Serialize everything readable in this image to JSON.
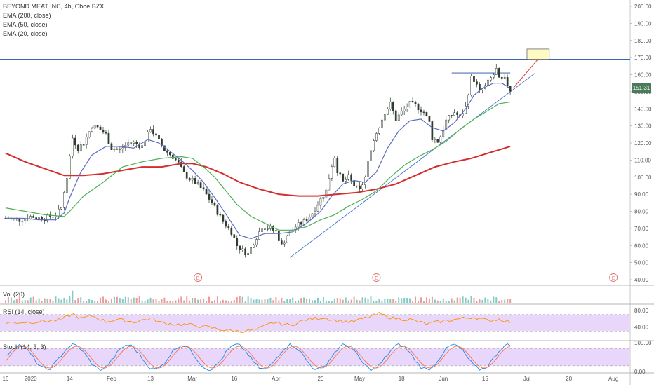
{
  "chart_data": {
    "type": "candlestick",
    "title": "BEYOND MEAT INC, 4h, Cboe BZX",
    "indicators_legend": [
      "EMA (200, close)",
      "EMA (50, close)",
      "EMA (20, close)"
    ],
    "price_axis": {
      "ticks": [
        "200.00",
        "190.00",
        "180.00",
        "170.00",
        "160.00",
        "150.00",
        "140.00",
        "130.00",
        "120.00",
        "110.00",
        "100.00",
        "90.00",
        "80.00",
        "70.00",
        "60.00",
        "50.00",
        "40.00"
      ],
      "ylim": [
        40,
        200
      ]
    },
    "last_price": "151.31",
    "x_axis": {
      "ticks": [
        "16",
        "2020",
        "14",
        "Feb",
        "13",
        "Mar",
        "16",
        "Apr",
        "20",
        "May",
        "18",
        "Jun",
        "15",
        "Jul",
        "20",
        "Aug"
      ],
      "tick_values": [
        0,
        9,
        23,
        38,
        52,
        67,
        82,
        97,
        113,
        127,
        142,
        157,
        172,
        187,
        202,
        218
      ]
    },
    "price_series": [
      {
        "name": "price",
        "points": [
          [
            0,
            76
          ],
          [
            5,
            75
          ],
          [
            9,
            77
          ],
          [
            14,
            76
          ],
          [
            18,
            78
          ],
          [
            20,
            82
          ],
          [
            21,
            92
          ],
          [
            22,
            100
          ],
          [
            23,
            112
          ],
          [
            24,
            123
          ],
          [
            26,
            117
          ],
          [
            28,
            120
          ],
          [
            31,
            130
          ],
          [
            33,
            129
          ],
          [
            36,
            125
          ],
          [
            38,
            117
          ],
          [
            41,
            116
          ],
          [
            44,
            120
          ],
          [
            46,
            120
          ],
          [
            49,
            118
          ],
          [
            51,
            125
          ],
          [
            52,
            129
          ],
          [
            53,
            126
          ],
          [
            55,
            121
          ],
          [
            57,
            116
          ],
          [
            60,
            112
          ],
          [
            62,
            108
          ],
          [
            64,
            102
          ],
          [
            66,
            99
          ],
          [
            68,
            97
          ],
          [
            71,
            92
          ],
          [
            74,
            85
          ],
          [
            78,
            74
          ],
          [
            81,
            68
          ],
          [
            83,
            60
          ],
          [
            85,
            57
          ],
          [
            87,
            55
          ],
          [
            89,
            62
          ],
          [
            92,
            71
          ],
          [
            95,
            70
          ],
          [
            97,
            68
          ],
          [
            99,
            60
          ],
          [
            101,
            66
          ],
          [
            104,
            71
          ],
          [
            107,
            74
          ],
          [
            110,
            79
          ],
          [
            113,
            87
          ],
          [
            115,
            92
          ],
          [
            116,
            100
          ],
          [
            117,
            107
          ],
          [
            118,
            112
          ],
          [
            119,
            104
          ],
          [
            121,
            97
          ],
          [
            123,
            100
          ],
          [
            125,
            95
          ],
          [
            127,
            92
          ],
          [
            129,
            100
          ],
          [
            131,
            117
          ],
          [
            133,
            126
          ],
          [
            136,
            138
          ],
          [
            138,
            143
          ],
          [
            140,
            134
          ],
          [
            142,
            138
          ],
          [
            145,
            143
          ],
          [
            147,
            142
          ],
          [
            150,
            138
          ],
          [
            152,
            132
          ],
          [
            153,
            123
          ],
          [
            155,
            121
          ],
          [
            156,
            124
          ],
          [
            158,
            133
          ],
          [
            161,
            138
          ],
          [
            163,
            135
          ],
          [
            165,
            141
          ],
          [
            167,
            158
          ],
          [
            168,
            157
          ],
          [
            170,
            150
          ],
          [
            172,
            153
          ],
          [
            174,
            158
          ],
          [
            175,
            160
          ],
          [
            176,
            163
          ],
          [
            177,
            157
          ],
          [
            179,
            157
          ],
          [
            181,
            151
          ]
        ]
      },
      {
        "name": "EMA (200, close)",
        "color": "#d32f2f",
        "points": [
          [
            0,
            114
          ],
          [
            7,
            109
          ],
          [
            14,
            105
          ],
          [
            21,
            101
          ],
          [
            28,
            101
          ],
          [
            35,
            102
          ],
          [
            42,
            104
          ],
          [
            49,
            106
          ],
          [
            56,
            106
          ],
          [
            63,
            108
          ],
          [
            67,
            108
          ],
          [
            72,
            106
          ],
          [
            78,
            102
          ],
          [
            84,
            97
          ],
          [
            91,
            93
          ],
          [
            98,
            90
          ],
          [
            105,
            89
          ],
          [
            112,
            89
          ],
          [
            119,
            90
          ],
          [
            126,
            91
          ],
          [
            133,
            93
          ],
          [
            140,
            96
          ],
          [
            147,
            101
          ],
          [
            154,
            106
          ],
          [
            161,
            109
          ],
          [
            167,
            111
          ],
          [
            173,
            114
          ],
          [
            177,
            116
          ],
          [
            181,
            118
          ]
        ]
      },
      {
        "name": "EMA (50, close)",
        "color": "#4caf50",
        "points": [
          [
            0,
            82
          ],
          [
            7,
            80
          ],
          [
            14,
            78
          ],
          [
            21,
            77
          ],
          [
            23,
            80
          ],
          [
            28,
            89
          ],
          [
            35,
            97
          ],
          [
            42,
            106
          ],
          [
            49,
            109
          ],
          [
            56,
            111
          ],
          [
            63,
            112
          ],
          [
            67,
            111
          ],
          [
            71,
            106
          ],
          [
            75,
            100
          ],
          [
            79,
            92
          ],
          [
            83,
            84
          ],
          [
            88,
            77
          ],
          [
            93,
            73
          ],
          [
            98,
            69
          ],
          [
            103,
            69
          ],
          [
            108,
            71
          ],
          [
            113,
            75
          ],
          [
            118,
            78
          ],
          [
            123,
            83
          ],
          [
            128,
            87
          ],
          [
            133,
            92
          ],
          [
            138,
            100
          ],
          [
            143,
            107
          ],
          [
            148,
            112
          ],
          [
            153,
            116
          ],
          [
            158,
            121
          ],
          [
            163,
            128
          ],
          [
            168,
            134
          ],
          [
            173,
            139
          ],
          [
            177,
            143
          ],
          [
            181,
            144
          ]
        ]
      },
      {
        "name": "EMA (20, close)",
        "color": "#5c6bc0",
        "points": [
          [
            0,
            76
          ],
          [
            6,
            76
          ],
          [
            12,
            75
          ],
          [
            18,
            75
          ],
          [
            21,
            79
          ],
          [
            23,
            88
          ],
          [
            27,
            103
          ],
          [
            31,
            113
          ],
          [
            36,
            118
          ],
          [
            41,
            118
          ],
          [
            46,
            117
          ],
          [
            51,
            122
          ],
          [
            55,
            120
          ],
          [
            59,
            115
          ],
          [
            63,
            110
          ],
          [
            67,
            104
          ],
          [
            71,
            97
          ],
          [
            75,
            88
          ],
          [
            80,
            76
          ],
          [
            84,
            66
          ],
          [
            88,
            64
          ],
          [
            93,
            67
          ],
          [
            98,
            67
          ],
          [
            103,
            68
          ],
          [
            108,
            73
          ],
          [
            113,
            80
          ],
          [
            117,
            89
          ],
          [
            121,
            96
          ],
          [
            125,
            98
          ],
          [
            129,
            97
          ],
          [
            133,
            103
          ],
          [
            137,
            117
          ],
          [
            141,
            127
          ],
          [
            145,
            133
          ],
          [
            149,
            134
          ],
          [
            153,
            129
          ],
          [
            157,
            127
          ],
          [
            161,
            132
          ],
          [
            165,
            140
          ],
          [
            168,
            148
          ],
          [
            171,
            152
          ],
          [
            175,
            155
          ],
          [
            178,
            155
          ],
          [
            181,
            152
          ]
        ]
      }
    ],
    "annotations": [
      {
        "type": "horizontal_line",
        "value": 169,
        "color": "#1f4fa3"
      },
      {
        "type": "horizontal_line",
        "value": 151,
        "color": "#1f4fa3"
      },
      {
        "type": "resistance_segment",
        "x": [
          160,
          181
        ],
        "value": 161
      },
      {
        "type": "trendline",
        "from": [
          102,
          53
        ],
        "to": [
          190,
          161
        ]
      },
      {
        "type": "arrow",
        "from": [
          182,
          152
        ],
        "to": [
          192,
          171
        ],
        "color": "#e53935"
      },
      {
        "type": "target_box",
        "x": [
          187,
          195
        ],
        "y": [
          169,
          175
        ],
        "color": "#fff9c4"
      },
      {
        "type": "earnings_markers",
        "label": "E",
        "x": [
          69,
          133,
          218
        ]
      }
    ],
    "volume_pane": {
      "label": "Vol (20)"
    },
    "rsi_pane": {
      "label": "RSI (14, close)",
      "ticks": [
        "80.00",
        "40.00"
      ],
      "ylim": [
        10,
        90
      ],
      "band": [
        30,
        70
      ],
      "points": [
        [
          0,
          50
        ],
        [
          10,
          52
        ],
        [
          20,
          57
        ],
        [
          24,
          72
        ],
        [
          27,
          60
        ],
        [
          31,
          67
        ],
        [
          36,
          53
        ],
        [
          40,
          58
        ],
        [
          46,
          52
        ],
        [
          52,
          61
        ],
        [
          56,
          50
        ],
        [
          60,
          47
        ],
        [
          66,
          45
        ],
        [
          72,
          40
        ],
        [
          78,
          33
        ],
        [
          84,
          29
        ],
        [
          90,
          33
        ],
        [
          96,
          51
        ],
        [
          102,
          44
        ],
        [
          108,
          58
        ],
        [
          114,
          63
        ],
        [
          118,
          56
        ],
        [
          124,
          52
        ],
        [
          130,
          63
        ],
        [
          134,
          72
        ],
        [
          139,
          61
        ],
        [
          145,
          58
        ],
        [
          151,
          47
        ],
        [
          157,
          54
        ],
        [
          163,
          60
        ],
        [
          168,
          64
        ],
        [
          173,
          55
        ],
        [
          177,
          59
        ],
        [
          181,
          52
        ]
      ]
    },
    "stoch_pane": {
      "label": "Stoch (14, 3, 3)",
      "ticks": [
        "100.00",
        "0.00"
      ],
      "ylim": [
        0,
        100
      ],
      "band": [
        20,
        80
      ]
    },
    "colors": {
      "up": "#26a69a",
      "down": "#ef5350",
      "candle": "#2e3b2e",
      "panel_band": "#e9d7fb",
      "rsi_line": "#ff8f00",
      "stoch_k": "#1e88e5",
      "stoch_d": "#ff7043"
    }
  }
}
